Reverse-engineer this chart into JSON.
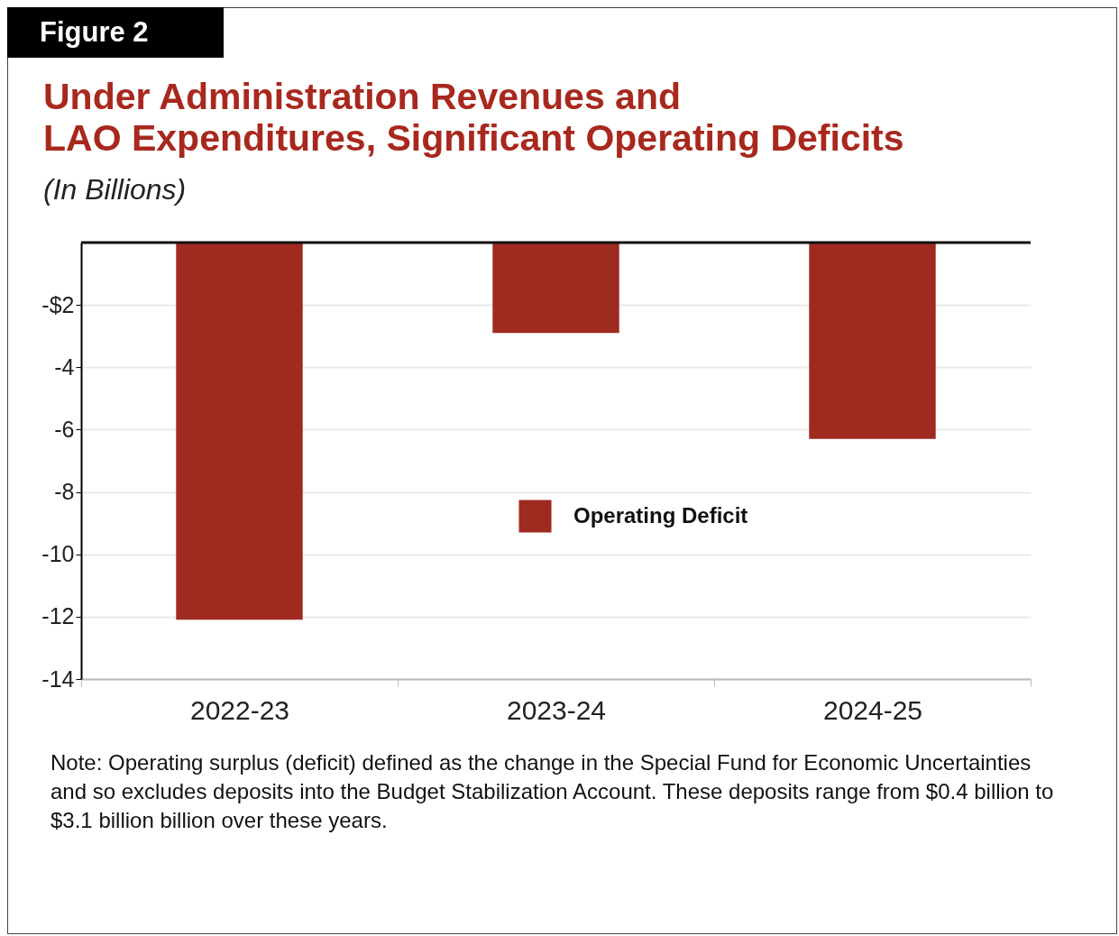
{
  "chart_data": {
    "type": "bar",
    "title": "Under Administration Revenues and\nLAO Expenditures, Significant Operating Deficits",
    "subtitle": "(In Billions)",
    "annotations": [
      "Figure 2",
      "Note: Operating surplus (deficit) defined as the change in the Special Fund for Economic Uncertainties and so excludes deposits into the Budget Stabilization Account. These deposits range from $0.4 billion to $3.1 billion billion over these years."
    ],
    "categories": [
      "2022-23",
      "2023-24",
      "2024-25"
    ],
    "series": [
      {
        "name": "Operating Deficit",
        "color": "#9e2a20",
        "values": [
          -12.1,
          -2.9,
          -6.3
        ]
      }
    ],
    "ylim": [
      -14,
      0
    ],
    "yticks": [
      {
        "value": -2,
        "label": "-$2"
      },
      -4,
      -6,
      -8,
      -10,
      -12,
      -14
    ],
    "ref_lines": [
      {
        "axis": "y",
        "value": 0,
        "color": "#111111"
      }
    ],
    "grid": "y",
    "legend": "center"
  }
}
